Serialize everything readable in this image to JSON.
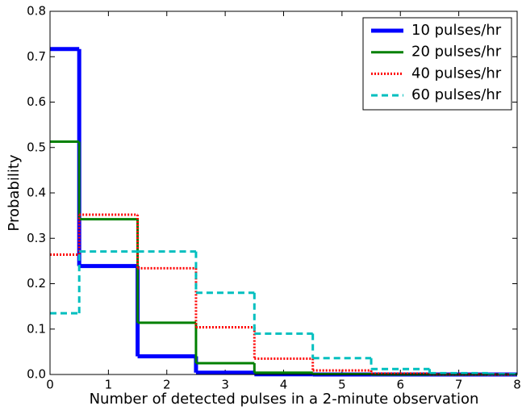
{
  "chart_data": {
    "type": "step",
    "xlabel": "Number of detected pulses in a 2-minute observation",
    "ylabel": "Probability",
    "x": [
      0,
      1,
      2,
      3,
      4,
      5,
      6,
      7,
      8
    ],
    "series": [
      {
        "name": "10 pulses/hr",
        "color": "#0000ff",
        "style": "solid",
        "width": 5,
        "values": [
          0.717,
          0.239,
          0.04,
          0.004,
          0.0004,
          0,
          0,
          0,
          0
        ]
      },
      {
        "name": "20 pulses/hr",
        "color": "#008000",
        "style": "solid",
        "width": 3,
        "values": [
          0.513,
          0.342,
          0.114,
          0.025,
          0.004,
          0.001,
          0,
          0,
          0
        ]
      },
      {
        "name": "40 pulses/hr",
        "color": "#ff0000",
        "style": "dotted",
        "width": 3,
        "values": [
          0.264,
          0.352,
          0.234,
          0.104,
          0.035,
          0.009,
          0.002,
          0.0004,
          0.0001
        ]
      },
      {
        "name": "60 pulses/hr",
        "color": "#00bfbf",
        "style": "dashed",
        "width": 3,
        "values": [
          0.135,
          0.271,
          0.271,
          0.18,
          0.09,
          0.036,
          0.012,
          0.003,
          0.001
        ]
      }
    ],
    "xlim": [
      0,
      8
    ],
    "xticks": [
      0,
      1,
      2,
      3,
      4,
      5,
      6,
      7,
      8
    ],
    "ylim": [
      0,
      0.8
    ],
    "yticks": [
      {
        "value": 0,
        "label": "0.0"
      },
      0.1,
      0.2,
      0.3,
      0.4,
      0.5,
      0.6,
      0.7,
      0.8
    ],
    "legend": "upper right"
  }
}
